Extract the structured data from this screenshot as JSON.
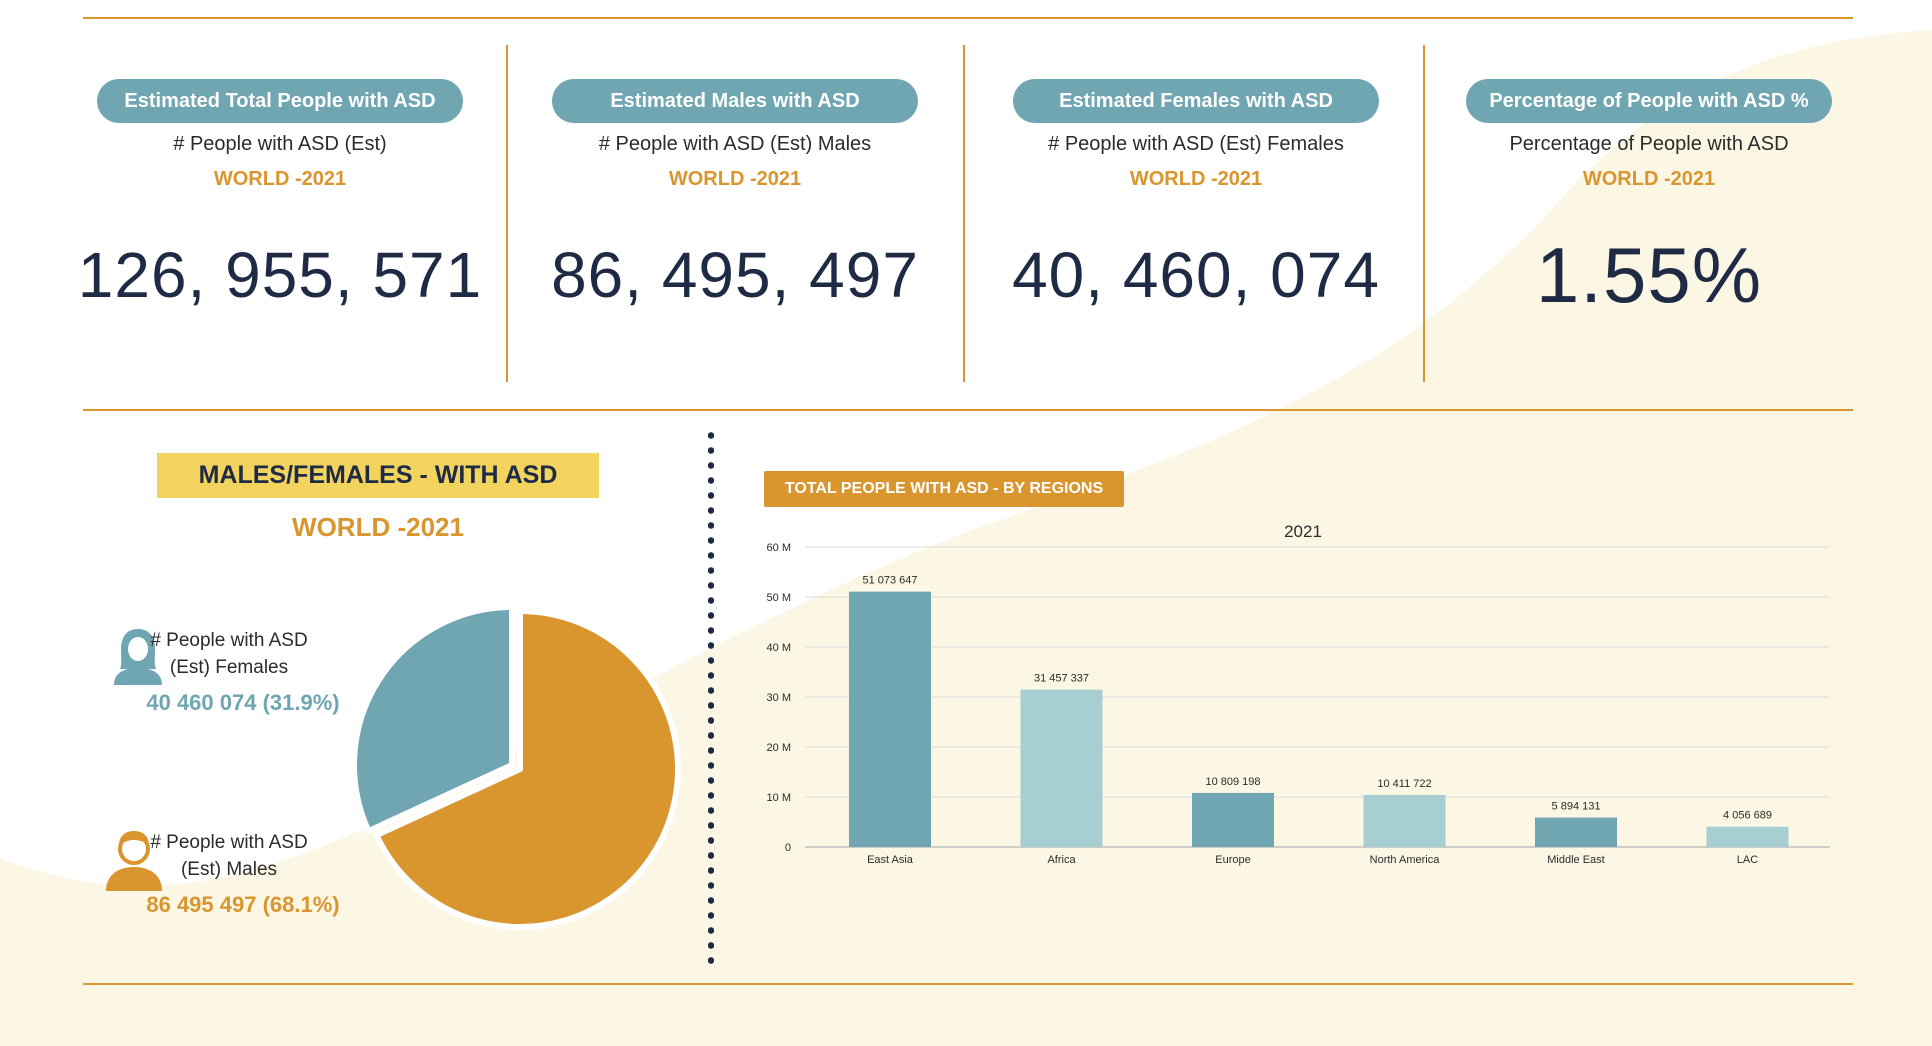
{
  "kpis": [
    {
      "pill": "Estimated Total People with ASD",
      "subtitle": "# People with ASD (Est)",
      "region": "WORLD -2021",
      "value": "126, 955, 571"
    },
    {
      "pill": "Estimated Males with ASD",
      "subtitle": "# People with ASD (Est) Males",
      "region": "WORLD -2021",
      "value": "86, 495, 497"
    },
    {
      "pill": "Estimated Females with ASD",
      "subtitle": "# People with ASD (Est) Females",
      "region": "WORLD -2021",
      "value": "40, 460, 074"
    },
    {
      "pill": "Percentage of People with ASD %",
      "subtitle": "Percentage of People with ASD",
      "region": "WORLD -2021",
      "value": "1.55%"
    }
  ],
  "mf": {
    "title": "MALES/FEMALES - WITH ASD",
    "region": "WORLD -2021",
    "female_label_1": "# People with ASD",
    "female_label_2": "(Est) Females",
    "female_value": "40 460 074 (31.9%)",
    "male_label_1": "# People with ASD",
    "male_label_2": "(Est) Males",
    "male_value": "86 495 497 (68.1%)"
  },
  "colors": {
    "teal": "#6fa6b1",
    "light_teal": "#a7cfd1",
    "orange": "#d9962f",
    "yellow": "#f2d35e",
    "navy": "#1f2a44"
  },
  "icons": {
    "female": "female-avatar-icon",
    "male": "male-avatar-icon"
  },
  "chart_data": [
    {
      "type": "pie",
      "categories": [
        "# People with ASD (Est) Females",
        "# People with ASD (Est) Males"
      ],
      "values": [
        40460074,
        86495497
      ],
      "percent": [
        31.9,
        68.1
      ],
      "colors": [
        "#6fa6b1",
        "#d9962f"
      ]
    },
    {
      "type": "bar",
      "title": "TOTAL PEOPLE WITH ASD - BY REGIONS",
      "subtitle": "2021",
      "categories": [
        "East Asia",
        "Africa",
        "Europe",
        "North America",
        "Middle East",
        "LAC"
      ],
      "values": [
        51073647,
        31457337,
        10809198,
        10411722,
        5894131,
        4056689
      ],
      "value_labels": [
        "51 073 647",
        "31 457 337",
        "10 809 198",
        "10 411 722",
        "5 894 131",
        "4 056 689"
      ],
      "bar_colors": [
        "#6fa6b1",
        "#a7cfd1",
        "#6fa6b1",
        "#a7cfd1",
        "#6fa6b1",
        "#a7cfd1"
      ],
      "y_ticks": [
        0,
        10000000,
        20000000,
        30000000,
        40000000,
        50000000,
        60000000
      ],
      "y_tick_labels": [
        "0",
        "10 M",
        "20 M",
        "30 M",
        "40 M",
        "50 M",
        "60 M"
      ],
      "ylim": [
        0,
        60000000
      ],
      "grid": true
    }
  ]
}
